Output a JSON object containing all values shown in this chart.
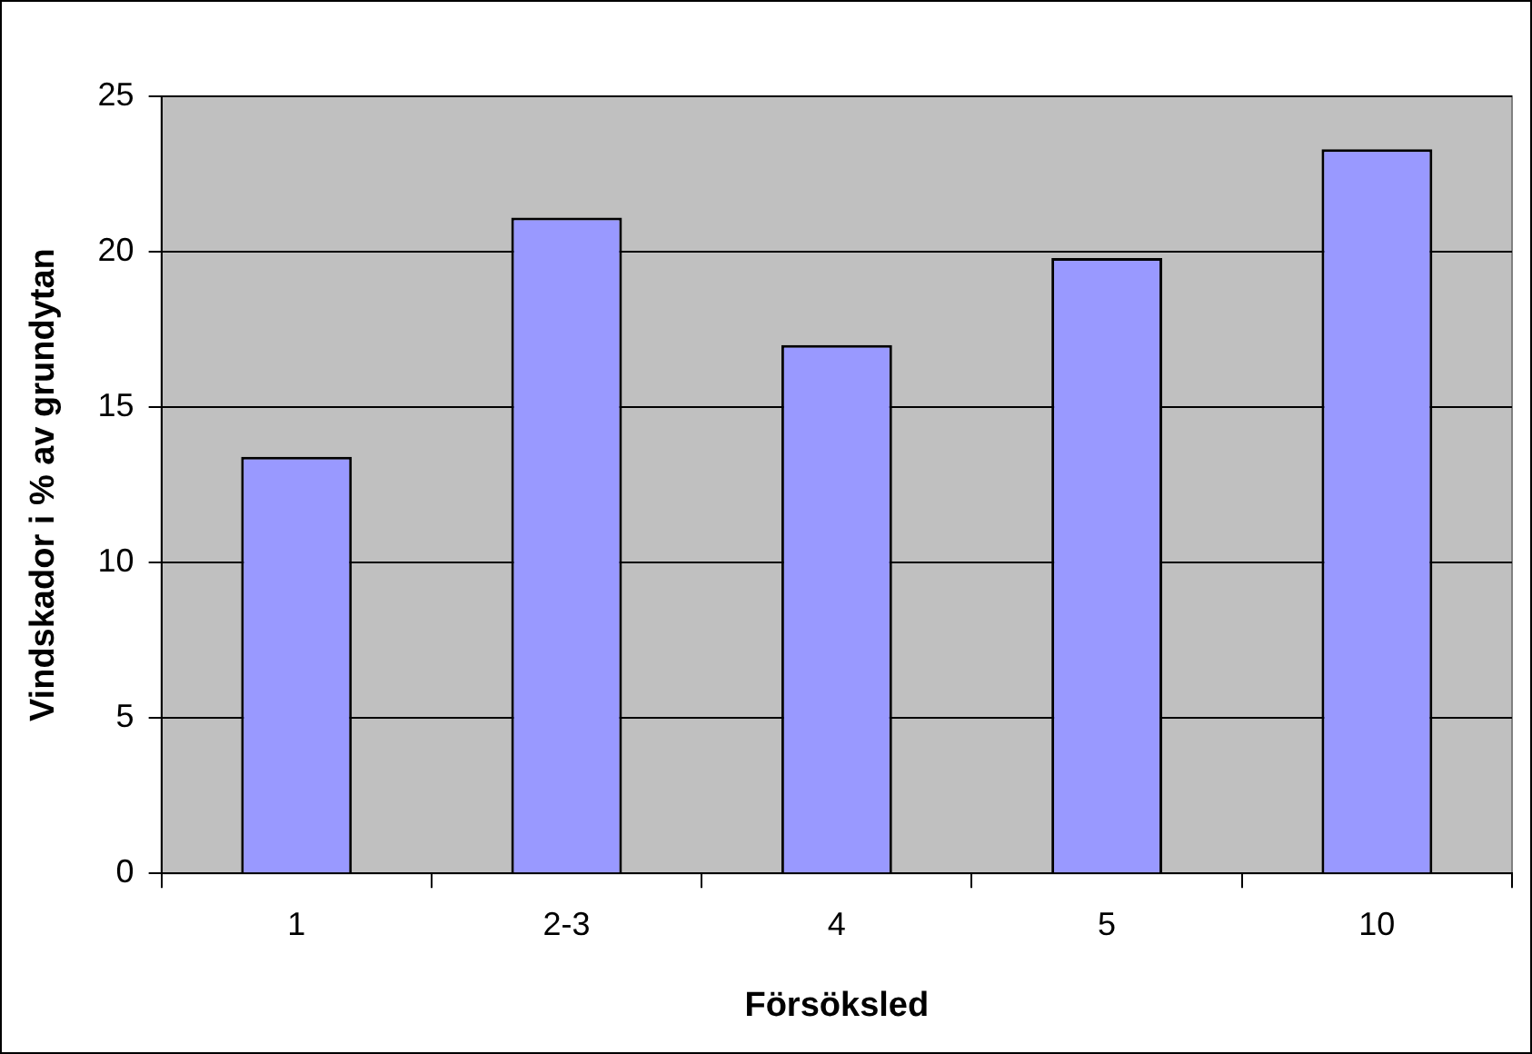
{
  "chart_data": {
    "type": "bar",
    "xlabel": "Försöksled",
    "ylabel": "Vindskador i % av grundytan",
    "categories": [
      "1",
      "2-3",
      "4",
      "5",
      "10"
    ],
    "values": [
      13.4,
      21.1,
      17.0,
      19.8,
      23.3
    ],
    "color": "#9999ff",
    "ylim": [
      0,
      25
    ],
    "yticks": [
      0,
      5,
      10,
      15,
      20,
      25
    ],
    "grid": "y"
  }
}
